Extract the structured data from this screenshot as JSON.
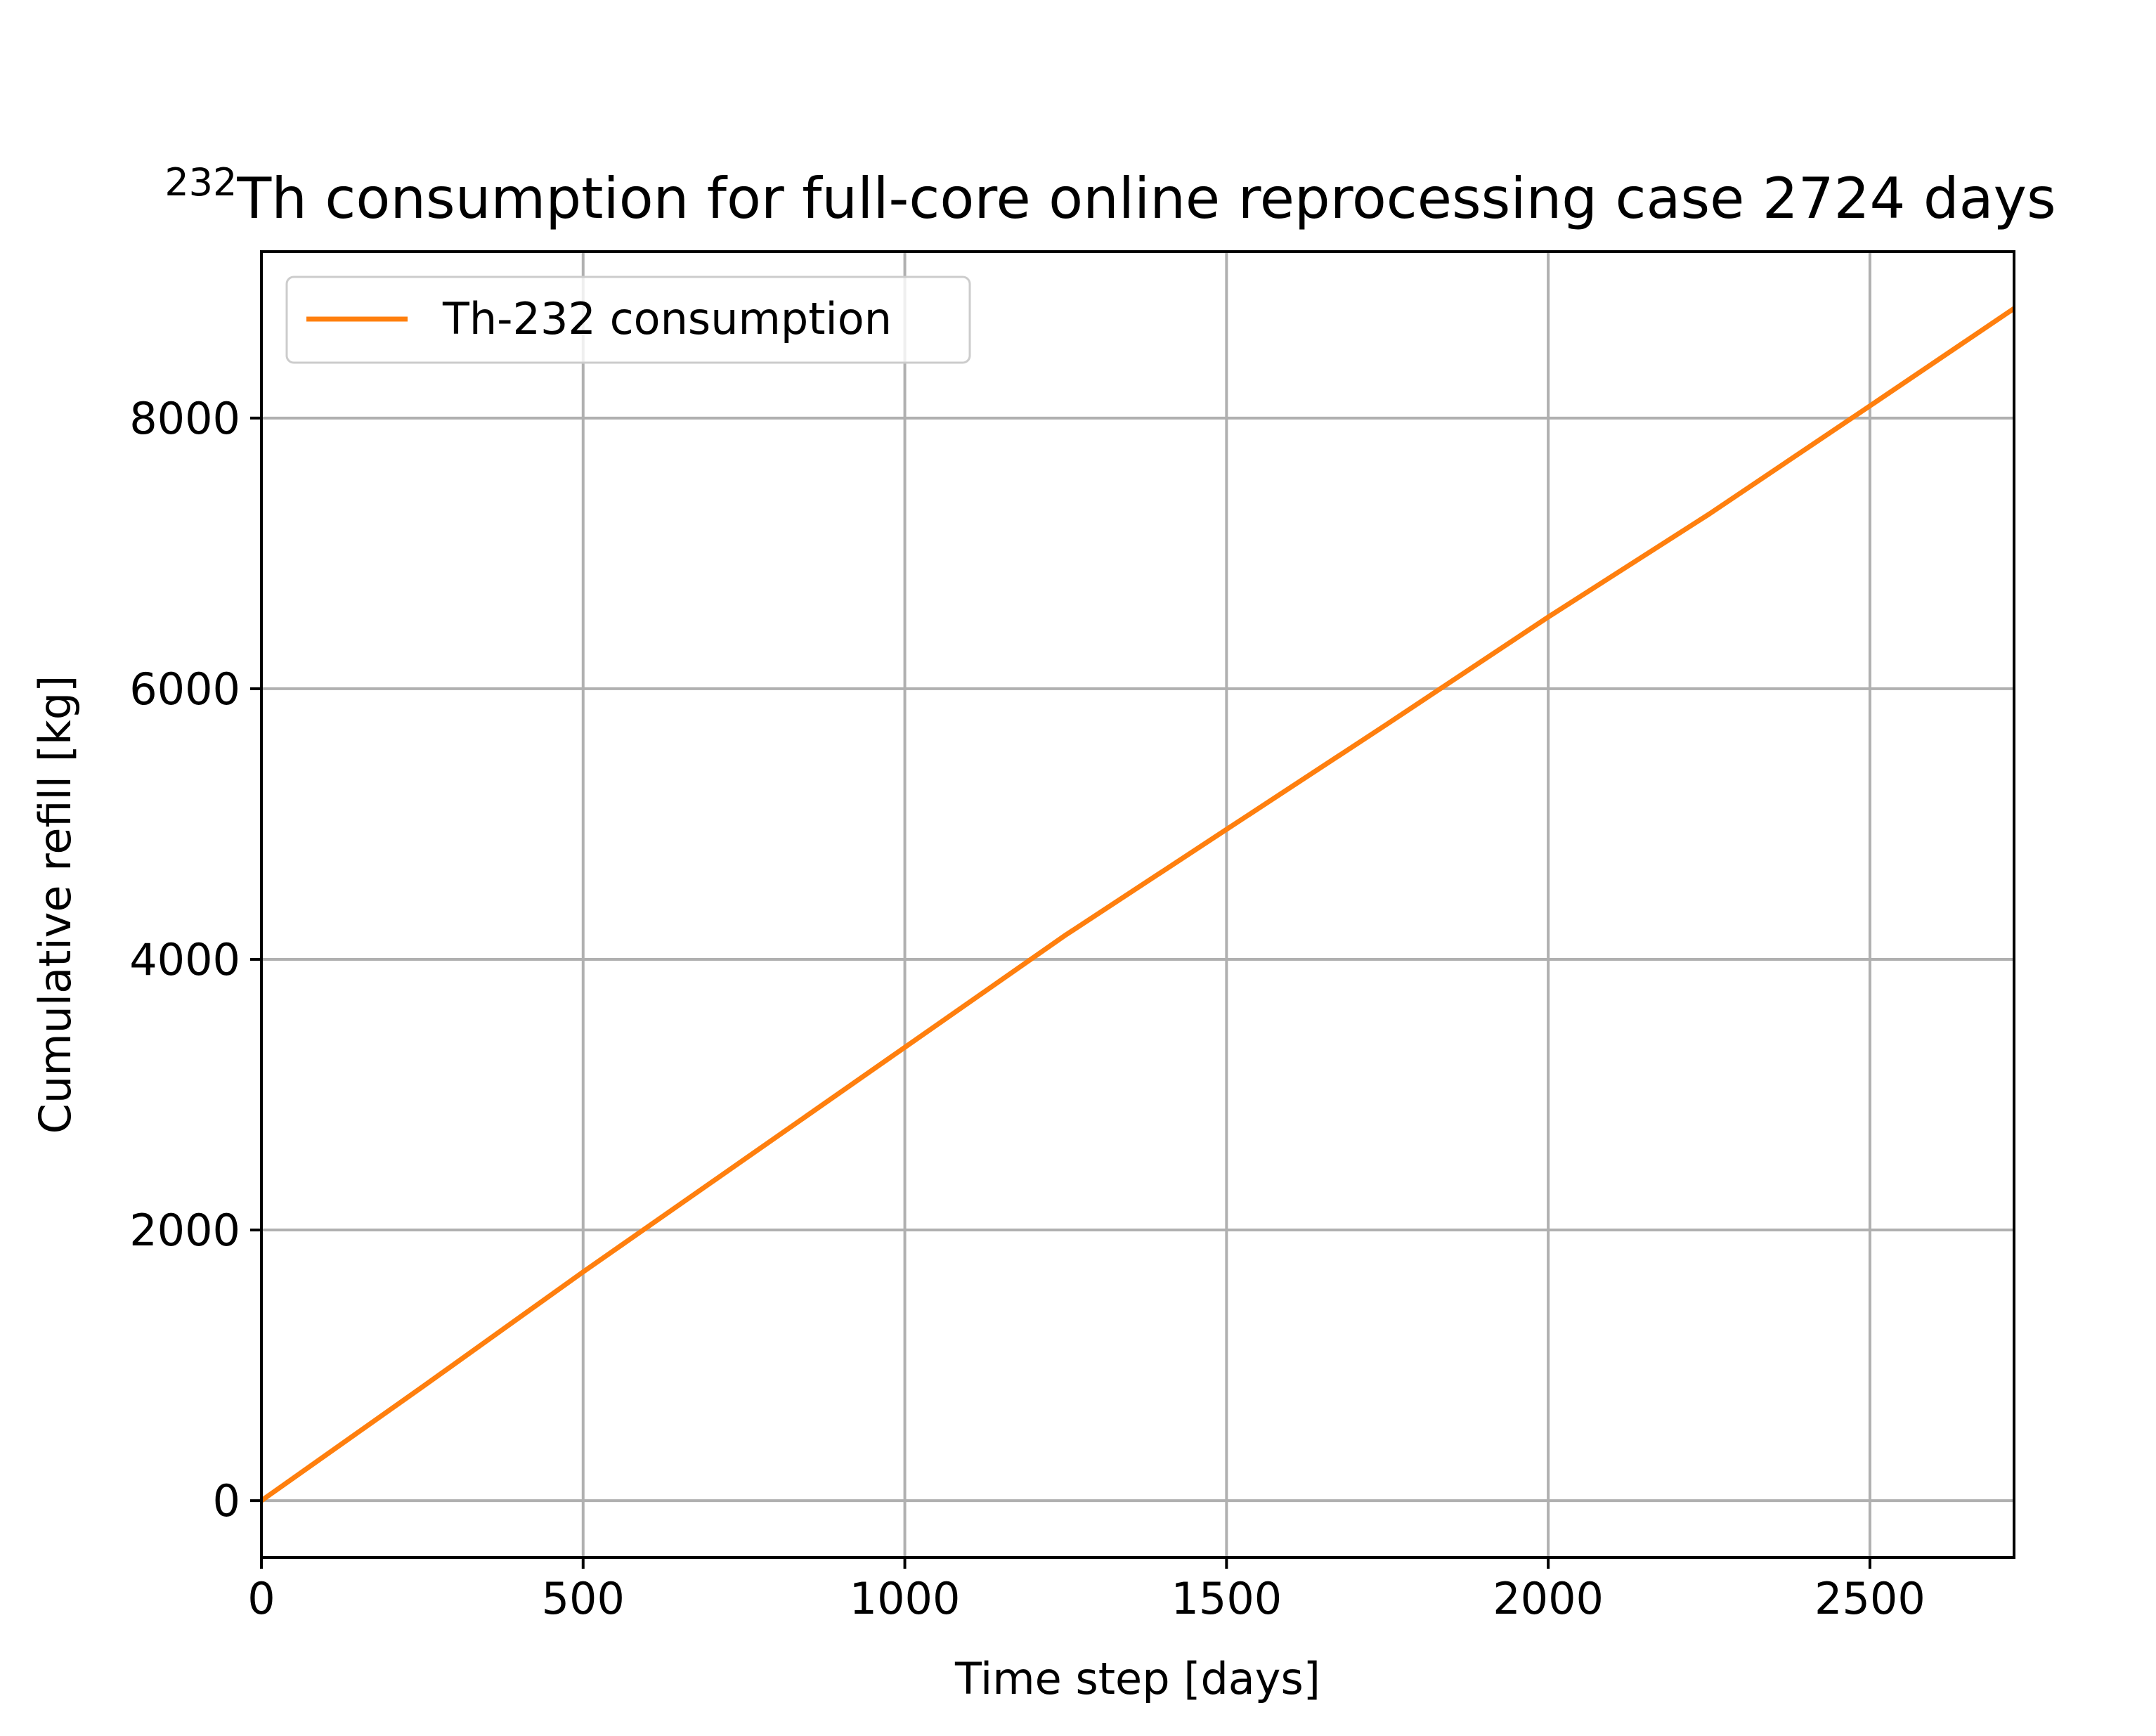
{
  "chart_data": {
    "type": "line",
    "title_superscript": "232",
    "title_main": "Th consumption for full-core online reprocessing case 2724 days",
    "xlabel": "Time step [days]",
    "ylabel": "Cumulative refill [kg]",
    "xlim": [
      0,
      2724
    ],
    "ylim": [
      -420,
      9230
    ],
    "xticks": [
      0,
      500,
      1000,
      1500,
      2000,
      2500
    ],
    "yticks": [
      0,
      2000,
      4000,
      6000,
      8000
    ],
    "grid": true,
    "legend_position": "upper-left",
    "series": [
      {
        "name": "Th-232 consumption",
        "color": "#ff7f0e",
        "x": [
          0,
          250,
          500,
          750,
          1000,
          1250,
          1500,
          1750,
          2000,
          2250,
          2500,
          2724
        ],
        "y": [
          0,
          840,
          1690,
          2520,
          3350,
          4180,
          4960,
          5740,
          6530,
          7290,
          8090,
          8810
        ]
      }
    ]
  }
}
